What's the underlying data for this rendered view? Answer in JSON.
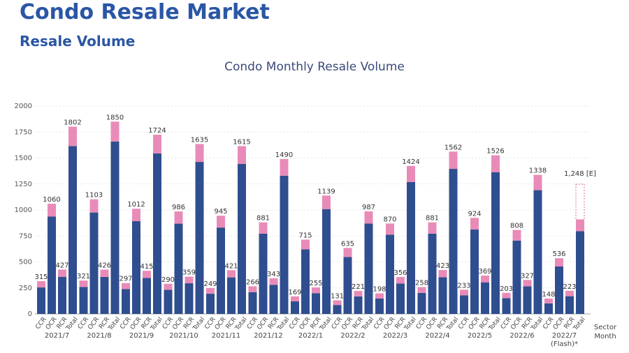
{
  "header": {
    "page_title": "Condo Resale Market",
    "section_title": "Resale Volume"
  },
  "chart_data": {
    "type": "bar",
    "title": "Condo Monthly Resale Volume",
    "xlabel": "Sector\nMonth",
    "ylabel": "",
    "ylim": [
      0,
      2000
    ],
    "yticks": [
      0,
      250,
      500,
      750,
      1000,
      1250,
      1500,
      1750,
      2000
    ],
    "sectors": [
      "CCR",
      "OCR",
      "RCR",
      "Total"
    ],
    "colors": {
      "base": "#2f4e8f",
      "top": "#e98bb8",
      "estimate_outline": "#e06a8a",
      "grid": "#cccccc"
    },
    "months": [
      {
        "label": "2021/7",
        "values": [
          315,
          1060,
          427,
          1802
        ]
      },
      {
        "label": "2021/8",
        "values": [
          321,
          1103,
          426,
          1850
        ]
      },
      {
        "label": "2021/9",
        "values": [
          297,
          1012,
          415,
          1724
        ]
      },
      {
        "label": "2021/10",
        "values": [
          290,
          986,
          359,
          1635
        ]
      },
      {
        "label": "2021/11",
        "values": [
          249,
          945,
          421,
          1615
        ]
      },
      {
        "label": "2021/12",
        "values": [
          266,
          881,
          343,
          1490
        ]
      },
      {
        "label": "2022/1",
        "values": [
          169,
          715,
          255,
          1139
        ]
      },
      {
        "label": "2022/2",
        "values": [
          131,
          635,
          221,
          987
        ]
      },
      {
        "label": "2022/3",
        "values": [
          198,
          870,
          356,
          1424
        ]
      },
      {
        "label": "2022/4",
        "values": [
          258,
          881,
          423,
          1562
        ]
      },
      {
        "label": "2022/5",
        "values": [
          233,
          924,
          369,
          1526
        ]
      },
      {
        "label": "2022/6",
        "values": [
          203,
          808,
          327,
          1338
        ]
      },
      {
        "label": "2022/7\n(Flash)*",
        "values": [
          148,
          536,
          223,
          907
        ]
      }
    ],
    "estimate": {
      "label": "1,248 [E]",
      "value": 1248
    }
  }
}
